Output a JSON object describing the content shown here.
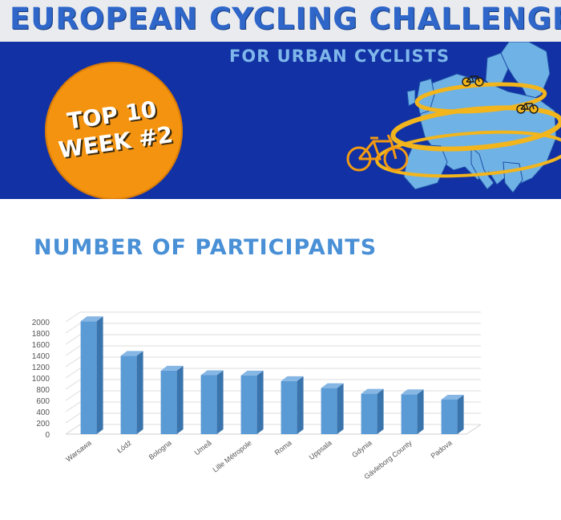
{
  "header": {
    "title": "EUROPEAN CYCLING CHALLENGE",
    "subtitle": "FOR URBAN CYCLISTS",
    "badge_line1": "TOP 10",
    "badge_line2": "WEEK #2"
  },
  "colors": {
    "header_band": "#e9ebee",
    "blue_band": "#1131a4",
    "badge": "#f3930f",
    "title": "#2f66c9",
    "heading": "#4a90d6",
    "bar_front": "#5b9bd5",
    "bar_side": "#3a74ad",
    "bar_top": "#86b6e4",
    "map": "#6fb2e6",
    "ribbon": "#f2b51c"
  },
  "icons": [
    "bicycle-icon",
    "europe-map-icon"
  ],
  "section_heading": "NUMBER OF PARTICIPANTS",
  "chart_data": {
    "type": "bar",
    "title": "",
    "xlabel": "",
    "ylabel": "",
    "categories": [
      "Warsawa",
      "Łódź",
      "Bologna",
      "Umeå",
      "Lille Métropole",
      "Roma",
      "Uppsala",
      "Gdynia",
      "Gävleborg County",
      "Padova"
    ],
    "values": [
      2010,
      1395,
      1130,
      1050,
      1045,
      945,
      820,
      720,
      710,
      615
    ],
    "ylim": [
      0,
      2000
    ],
    "yticks": [
      0,
      200,
      400,
      600,
      800,
      1000,
      1200,
      1400,
      1600,
      1800,
      2000
    ],
    "grid": true,
    "legend": "none",
    "style": "3d-column"
  }
}
